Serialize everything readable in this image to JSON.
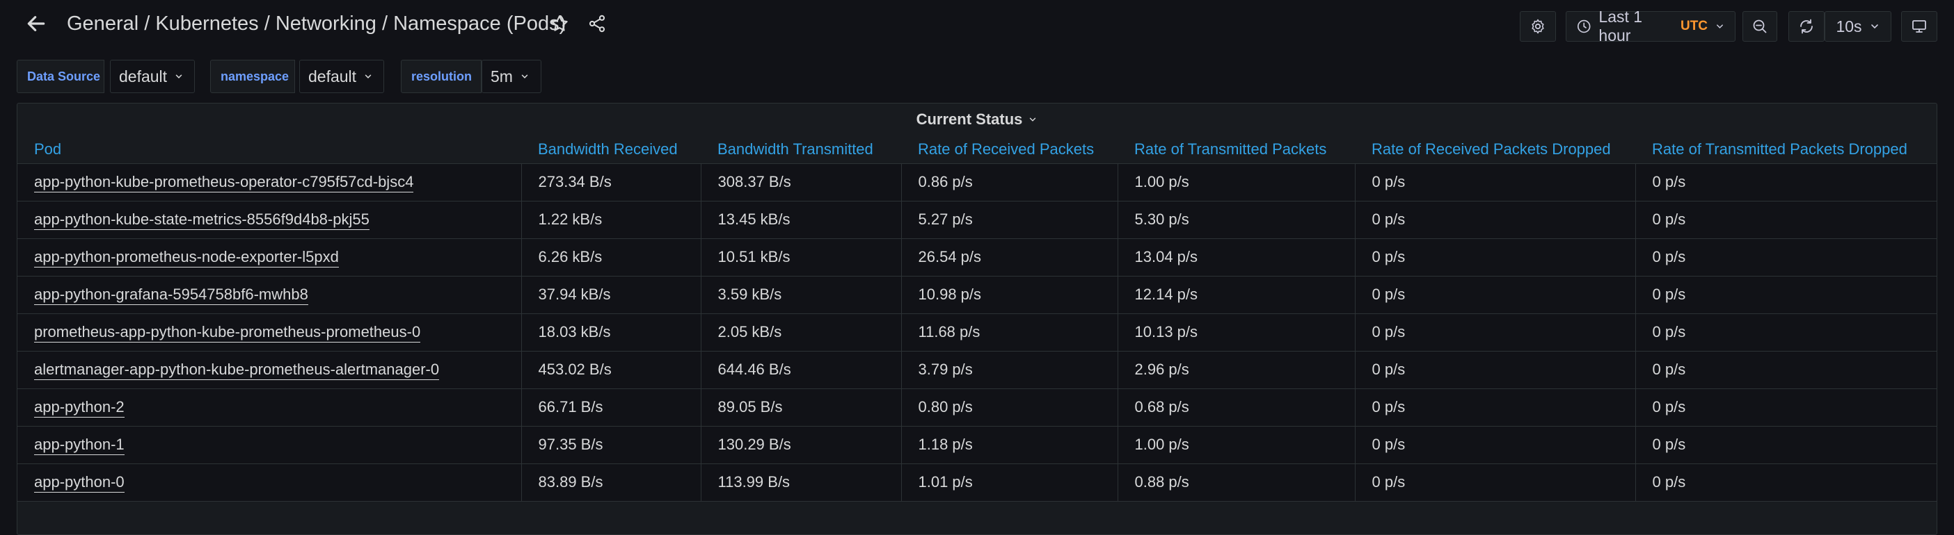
{
  "navbar": {
    "breadcrumb_folder": "General",
    "breadcrumb_separator": " / ",
    "dashboard_title": "Kubernetes / Networking / Namespace (Pods)",
    "time_range": "Last 1 hour",
    "timezone": "UTC",
    "refresh_interval": "10s"
  },
  "variables": [
    {
      "label": "Data Source",
      "value": "default"
    },
    {
      "label": "namespace",
      "value": "default"
    },
    {
      "label": "resolution",
      "value": "5m"
    }
  ],
  "panel": {
    "title": "Current Status",
    "columns": [
      "Pod",
      "Bandwidth Received",
      "Bandwidth Transmitted",
      "Rate of Received Packets",
      "Rate of Transmitted Packets",
      "Rate of Received Packets Dropped",
      "Rate of Transmitted Packets Dropped"
    ],
    "rows": [
      [
        "app-python-kube-prometheus-operator-c795f57cd-bjsc4",
        "273.34 B/s",
        "308.37 B/s",
        "0.86 p/s",
        "1.00 p/s",
        "0 p/s",
        "0 p/s"
      ],
      [
        "app-python-kube-state-metrics-8556f9d4b8-pkj55",
        "1.22 kB/s",
        "13.45 kB/s",
        "5.27 p/s",
        "5.30 p/s",
        "0 p/s",
        "0 p/s"
      ],
      [
        "app-python-prometheus-node-exporter-l5pxd",
        "6.26 kB/s",
        "10.51 kB/s",
        "26.54 p/s",
        "13.04 p/s",
        "0 p/s",
        "0 p/s"
      ],
      [
        "app-python-grafana-5954758bf6-mwhb8",
        "37.94 kB/s",
        "3.59 kB/s",
        "10.98 p/s",
        "12.14 p/s",
        "0 p/s",
        "0 p/s"
      ],
      [
        "prometheus-app-python-kube-prometheus-prometheus-0",
        "18.03 kB/s",
        "2.05 kB/s",
        "11.68 p/s",
        "10.13 p/s",
        "0 p/s",
        "0 p/s"
      ],
      [
        "alertmanager-app-python-kube-prometheus-alertmanager-0",
        "453.02 B/s",
        "644.46 B/s",
        "3.79 p/s",
        "2.96 p/s",
        "0 p/s",
        "0 p/s"
      ],
      [
        "app-python-2",
        "66.71 B/s",
        "89.05 B/s",
        "0.80 p/s",
        "0.68 p/s",
        "0 p/s",
        "0 p/s"
      ],
      [
        "app-python-1",
        "97.35 B/s",
        "130.29 B/s",
        "1.18 p/s",
        "1.00 p/s",
        "0 p/s",
        "0 p/s"
      ],
      [
        "app-python-0",
        "83.89 B/s",
        "113.99 B/s",
        "1.01 p/s",
        "0.88 p/s",
        "0 p/s",
        "0 p/s"
      ]
    ]
  },
  "icons": {
    "back": "arrow-left-icon",
    "star": "star-icon",
    "share": "share-icon",
    "settings": "gear-icon",
    "clock": "clock-icon",
    "zoom": "zoom-out-icon",
    "refresh": "refresh-icon",
    "kiosk": "monitor-icon",
    "chevron": "chevron-down-icon"
  },
  "colors": {
    "background": "#111217",
    "panel": "#181b1f",
    "variable_label": "#6e9fff",
    "column_header": "#33a2e5",
    "utc_badge": "#ff9830"
  }
}
